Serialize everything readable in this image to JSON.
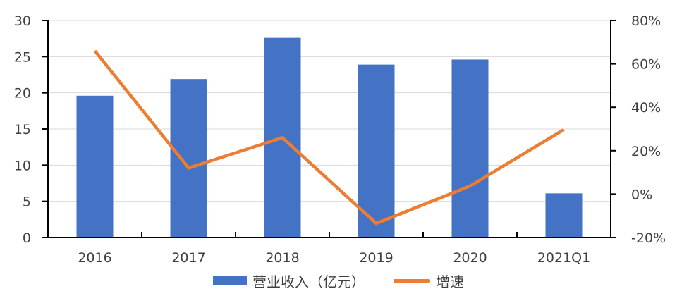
{
  "chart_data": {
    "type": "bar",
    "title": "",
    "xlabel": "",
    "ylabel": "",
    "categories": [
      "2016",
      "2017",
      "2018",
      "2019",
      "2020",
      "2021Q1"
    ],
    "series": [
      {
        "name": "营业收入（亿元）",
        "type": "bar",
        "axis": "left",
        "color": "#4472c4",
        "values": [
          19.6,
          21.9,
          27.6,
          23.9,
          24.6,
          6.1
        ]
      },
      {
        "name": "增速",
        "type": "line",
        "axis": "right",
        "color": "#ed7d31",
        "unit": "%",
        "values": [
          66,
          12,
          26,
          -13.5,
          3.7,
          29.7
        ]
      }
    ],
    "ylim": [
      0,
      30
    ],
    "y_ticks": [
      "0",
      "5",
      "10",
      "15",
      "20",
      "25",
      "30"
    ],
    "y2lim": [
      -20,
      80
    ],
    "y2_ticks": [
      "-20%",
      "0%",
      "20%",
      "40%",
      "60%",
      "80%"
    ],
    "grid": true,
    "legend_position": "bottom"
  },
  "legend": {
    "bar_label": "营业收入（亿元）",
    "line_label": "增速"
  }
}
